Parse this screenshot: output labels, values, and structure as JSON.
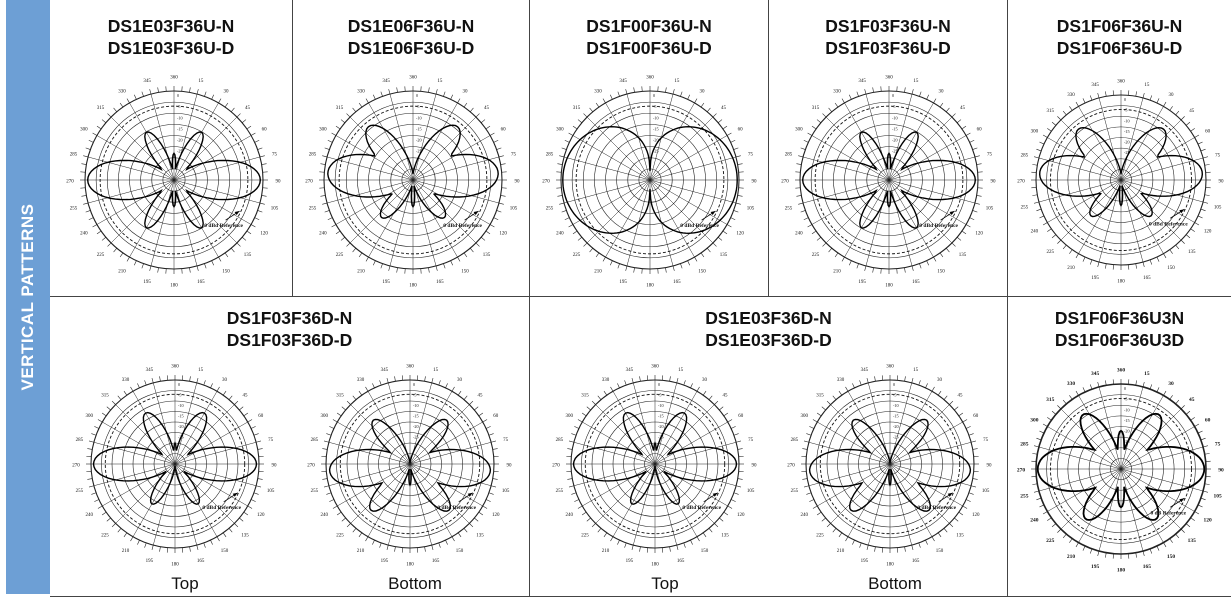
{
  "sidebar": {
    "label": "VERTICAL PATTERNS",
    "color": "#6d9fd5"
  },
  "angle_labels": [
    "360",
    "15",
    "30",
    "45",
    "60",
    "75",
    "90",
    "105",
    "120",
    "135",
    "150",
    "165",
    "180",
    "195",
    "210",
    "225",
    "240",
    "255",
    "270",
    "285",
    "300",
    "315",
    "330",
    "345"
  ],
  "ring_labels": [
    "0",
    "-5",
    "-10",
    "-15",
    "-20",
    "-25"
  ],
  "reference_label": "0 dBd Reference",
  "reference_label_alt": "0 dB Reference",
  "top_row": [
    {
      "line1": "DS1E03F36U-N",
      "line2": "DS1E03F36U-D",
      "pattern": "e03"
    },
    {
      "line1": "DS1E06F36U-N",
      "line2": "DS1E06F36U-D",
      "pattern": "e06"
    },
    {
      "line1": "DS1F00F36U-N",
      "line2": "DS1F00F36U-D",
      "pattern": "f00"
    },
    {
      "line1": "DS1F03F36U-N",
      "line2": "DS1F03F36U-D",
      "pattern": "e03"
    },
    {
      "line1": "DS1F06F36U-N",
      "line2": "DS1F06F36U-D",
      "pattern": "e06"
    }
  ],
  "bottom_row": [
    {
      "line1": "DS1F03F36D-N",
      "line2": "DS1F03F36D-D",
      "sub_top": "Top",
      "sub_bottom": "Bottom"
    },
    {
      "line1": "DS1E03F36D-N",
      "line2": "DS1E03F36D-D",
      "sub_top": "Top",
      "sub_bottom": "Bottom"
    },
    {
      "line1": "DS1F06F36U3N",
      "line2": "DS1F06F36U3D"
    }
  ]
}
